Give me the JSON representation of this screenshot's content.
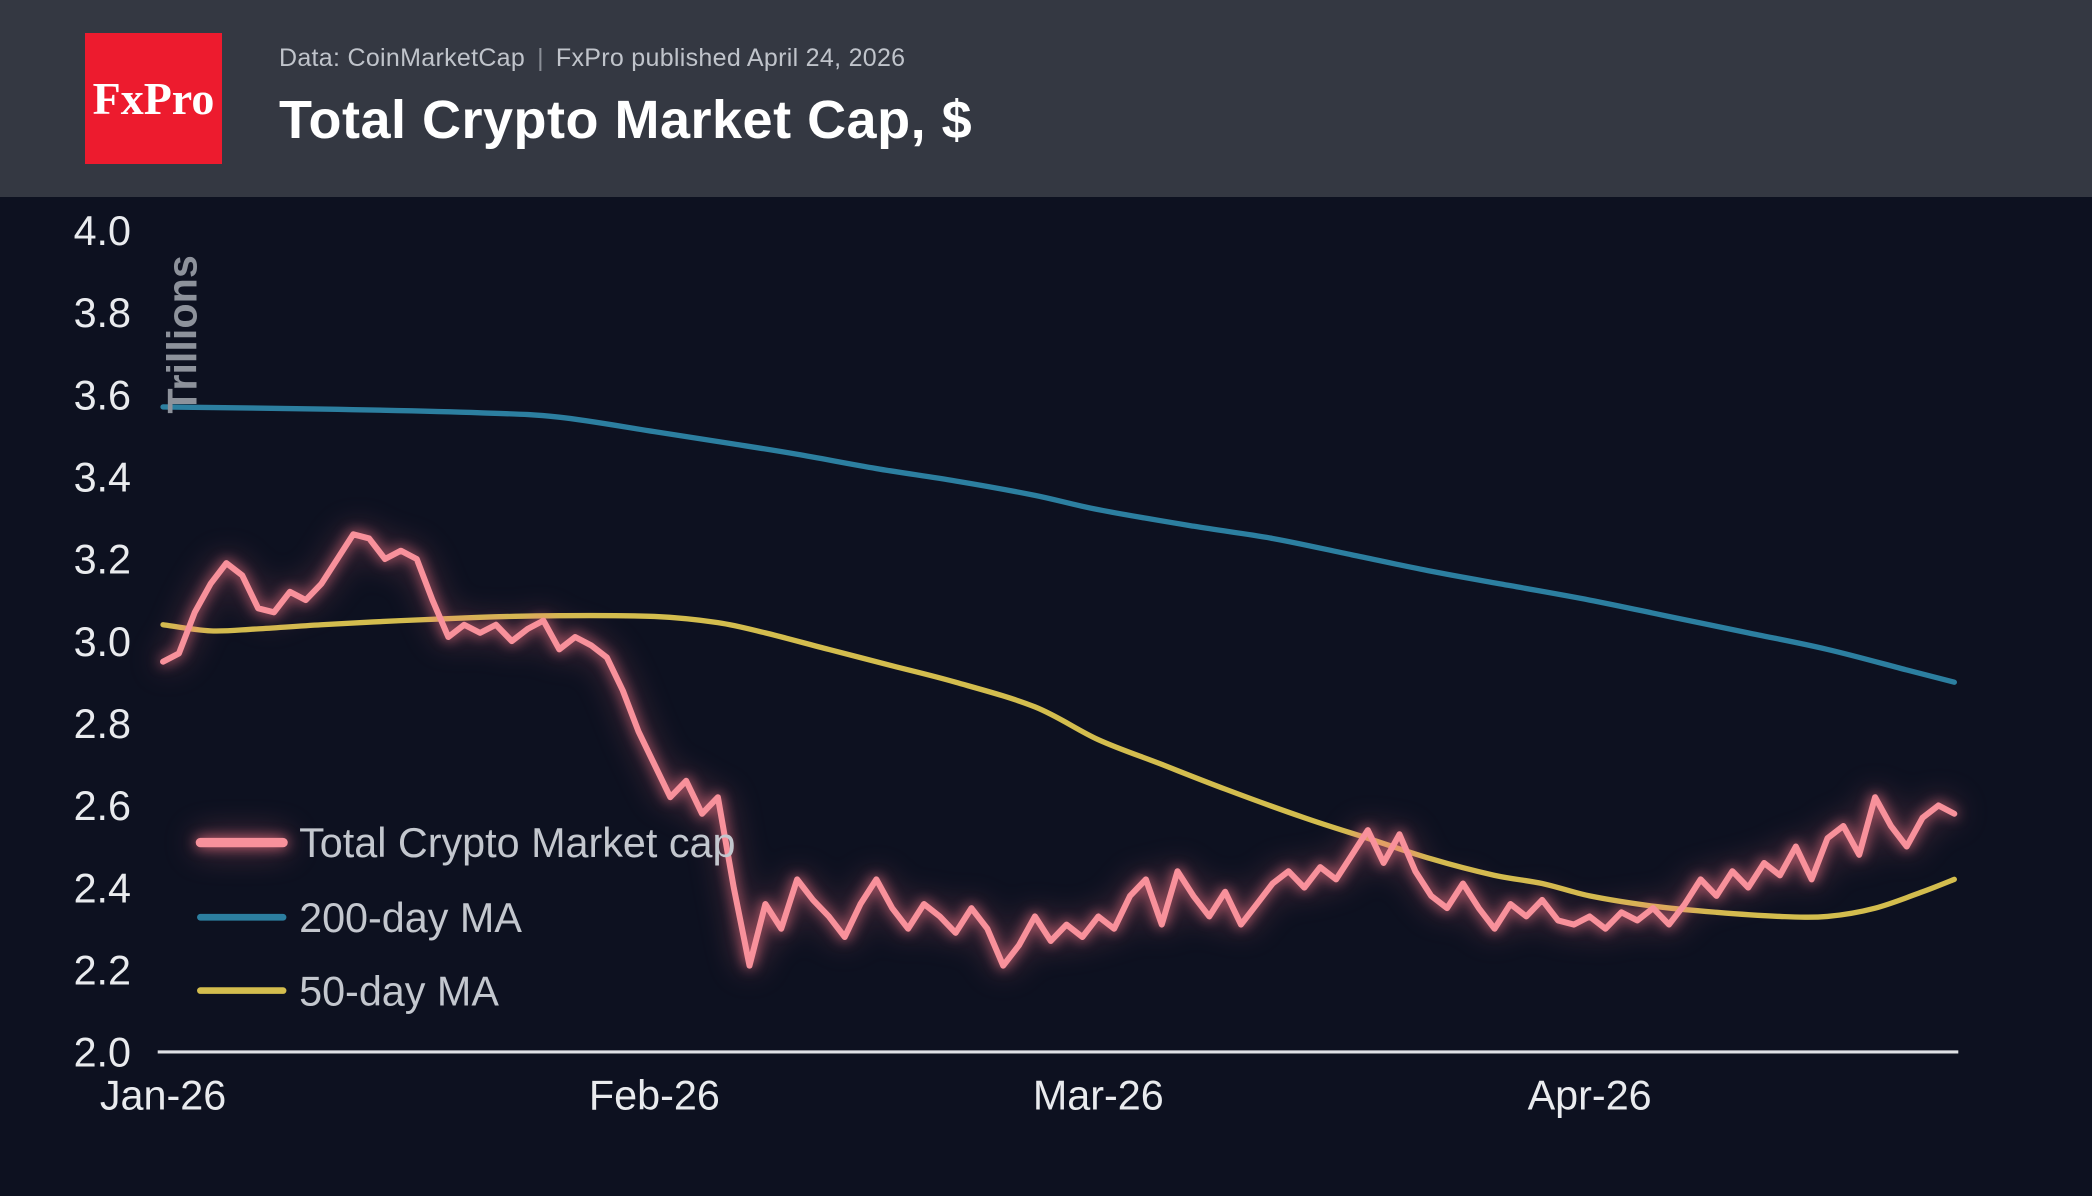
{
  "header": {
    "logo_text": "FxPro",
    "data_source": "Data: CoinMarketCap",
    "separator": "|",
    "published": "FxPro published April 24, 2026",
    "title": "Total Crypto Market Cap, $"
  },
  "colors": {
    "page_bg": "#0d1120",
    "header_bg": "#343842",
    "logo_red": "#ed1b2e",
    "title_text": "#ffffff",
    "meta_text": "#c0c4cb",
    "axis_text": "#e9ebee",
    "axis_line": "#dfe1e5",
    "ylabel_text": "#8d929b",
    "legend_text": "#c3c7ce",
    "marketcap_pink": "#f8919b",
    "ma200_teal": "#2c7fa0",
    "ma50_yellow": "#d3bd4e"
  },
  "chart_data": {
    "type": "line",
    "title": "Total Crypto Market Cap, $",
    "ylabel": "Trillions",
    "xlabel": "",
    "x_unit": "days since Jan 1, 2026",
    "xlim": [
      0,
      113
    ],
    "ylim": [
      2.0,
      4.0
    ],
    "y_ticks": [
      4.0,
      3.8,
      3.6,
      3.4,
      3.2,
      3.0,
      2.8,
      2.6,
      2.4,
      2.2,
      2.0
    ],
    "x_ticks": [
      {
        "label": "Jan-26",
        "x": 0
      },
      {
        "label": "Feb-26",
        "x": 31
      },
      {
        "label": "Mar-26",
        "x": 59
      },
      {
        "label": "Apr-26",
        "x": 90
      }
    ],
    "grid": false,
    "legend_position": "inside lower-left",
    "series": [
      {
        "name": "Total Crypto Market cap",
        "color": "#f8919b",
        "glow": true,
        "frequency": "daily",
        "values": [
          2.95,
          2.97,
          3.07,
          3.14,
          3.19,
          3.16,
          3.08,
          3.07,
          3.12,
          3.1,
          3.14,
          3.2,
          3.26,
          3.25,
          3.2,
          3.22,
          3.2,
          3.1,
          3.01,
          3.04,
          3.02,
          3.04,
          3.0,
          3.03,
          3.05,
          2.98,
          3.01,
          2.99,
          2.96,
          2.88,
          2.78,
          2.7,
          2.62,
          2.66,
          2.58,
          2.62,
          2.4,
          2.21,
          2.36,
          2.3,
          2.42,
          2.37,
          2.33,
          2.28,
          2.36,
          2.42,
          2.35,
          2.3,
          2.36,
          2.33,
          2.29,
          2.35,
          2.3,
          2.21,
          2.26,
          2.33,
          2.27,
          2.31,
          2.28,
          2.33,
          2.3,
          2.38,
          2.42,
          2.31,
          2.44,
          2.38,
          2.33,
          2.39,
          2.31,
          2.36,
          2.41,
          2.44,
          2.4,
          2.45,
          2.42,
          2.48,
          2.54,
          2.46,
          2.53,
          2.44,
          2.38,
          2.35,
          2.41,
          2.35,
          2.3,
          2.36,
          2.33,
          2.37,
          2.32,
          2.31,
          2.33,
          2.3,
          2.34,
          2.32,
          2.35,
          2.31,
          2.36,
          2.42,
          2.38,
          2.44,
          2.4,
          2.46,
          2.43,
          2.5,
          2.42,
          2.52,
          2.55,
          2.48,
          2.62,
          2.55,
          2.5,
          2.57,
          2.6,
          2.58
        ]
      },
      {
        "name": "200-day MA",
        "color": "#2c7fa0",
        "smooth": true,
        "points": {
          "x": [
            0,
            10,
            20,
            25,
            31,
            36,
            40,
            45,
            50,
            55,
            59,
            65,
            70,
            75,
            80,
            85,
            90,
            95,
            100,
            105,
            110,
            113
          ],
          "y": [
            3.57,
            3.565,
            3.556,
            3.545,
            3.51,
            3.48,
            3.455,
            3.42,
            3.39,
            3.355,
            3.32,
            3.28,
            3.25,
            3.21,
            3.17,
            3.135,
            3.1,
            3.06,
            3.02,
            2.98,
            2.93,
            2.9
          ]
        }
      },
      {
        "name": "50-day MA",
        "color": "#d3bd4e",
        "smooth": true,
        "points": {
          "x": [
            0,
            3,
            6,
            10,
            15,
            20,
            25,
            31,
            35,
            38,
            42,
            46,
            50,
            55,
            59,
            63,
            67,
            72,
            76,
            80,
            84,
            87,
            90,
            94,
            98,
            102,
            105,
            108,
            111,
            113
          ],
          "y": [
            3.04,
            3.025,
            3.03,
            3.04,
            3.05,
            3.058,
            3.062,
            3.06,
            3.045,
            3.02,
            2.98,
            2.94,
            2.9,
            2.84,
            2.76,
            2.7,
            2.64,
            2.57,
            2.52,
            2.47,
            2.43,
            2.41,
            2.38,
            2.355,
            2.34,
            2.33,
            2.33,
            2.35,
            2.39,
            2.42
          ]
        }
      }
    ]
  }
}
